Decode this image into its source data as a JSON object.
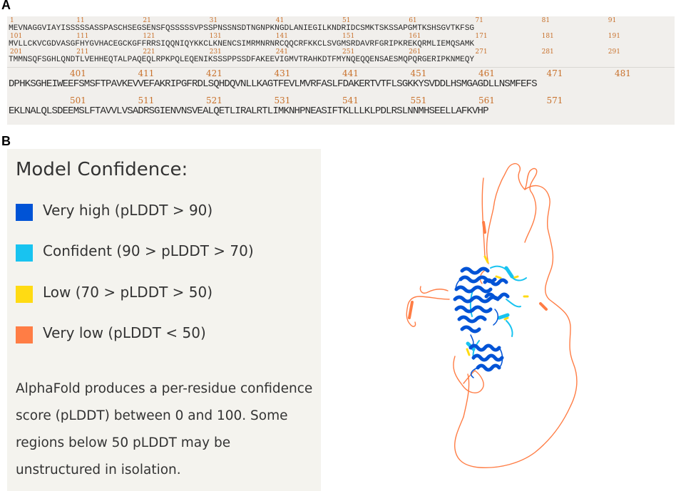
{
  "panel_a": {
    "label": "A"
  },
  "panel_b": {
    "label": "B"
  },
  "sequence": {
    "small_blocks": [
      {
        "numbers": [
          "1",
          "11",
          "21",
          "31",
          "41",
          "51",
          "61",
          "71",
          "81",
          "91"
        ],
        "text": "MEVNAGGVIAYISSSSSASSPASCHSEGSENSFQSSSSSVPSSPNSSNSDTNGNPKNGDLANIEGILKNDRIDCSMKTSKSSAPGMTKSHSGVTKFSG"
      },
      {
        "numbers": [
          "101",
          "111",
          "121",
          "131",
          "141",
          "151",
          "161",
          "171",
          "181",
          "191"
        ],
        "text": "MVLLCKVCGDVASGFHYGVHACEGCKGFFRRSIQQNIQYKKCLKNENCSIMRMNRNRCQQCRFKKCLSVGMSRDAVRFGRIPKREKQRMLIEMQSAMK"
      },
      {
        "numbers": [
          "201",
          "211",
          "221",
          "231",
          "241",
          "251",
          "261",
          "271",
          "281",
          "291"
        ],
        "text": "TMMNSQFSGHLQNDTLVEHHEQTALPAQEQLRPKPQLEQENIKSSSPPSSDFAKEEVIGMVTRAHKDTFMYNQEQQENSAESMQPQRGERIPKNMEQY"
      }
    ],
    "big_blocks": [
      {
        "numbers": [
          "401",
          "411",
          "421",
          "431",
          "441",
          "451",
          "461",
          "471",
          "481"
        ],
        "text": "DPHKSGHEIWEEFSMSFTPAVKEVVEFAKRIPGFRDLSQHDQVNLLKAGTFEVLMVRFASLFDAKERTVTFLSGKKYSVDDLHSMGAGDLLNSMFEFS"
      },
      {
        "numbers": [
          "501",
          "511",
          "521",
          "531",
          "541",
          "551",
          "561",
          "571"
        ],
        "text": "EKLNALQLSDEEMSLFTAVVLVSADRSGIENVNSVEALQETLIRALRTLIMKNHPNEASIFTKLLLKLPDLRSLNNMHSEELLAFKVHP"
      }
    ]
  },
  "legend": {
    "title": "Model Confidence:",
    "items": [
      {
        "label": "Very high (pLDDT > 90)",
        "color": "#0053d6"
      },
      {
        "label": "Confident (90 > pLDDT > 70)",
        "color": "#18c3f0"
      },
      {
        "label": "Low (70 > pLDDT > 50)",
        "color": "#ffdb13"
      },
      {
        "label": "Very low (pLDDT < 50)",
        "color": "#ff7d45"
      }
    ],
    "description": "AlphaFold produces a per-residue confidence score (pLDDT) between 0 and 100. Some regions below 50 pLDDT may be unstructured in isolation."
  }
}
